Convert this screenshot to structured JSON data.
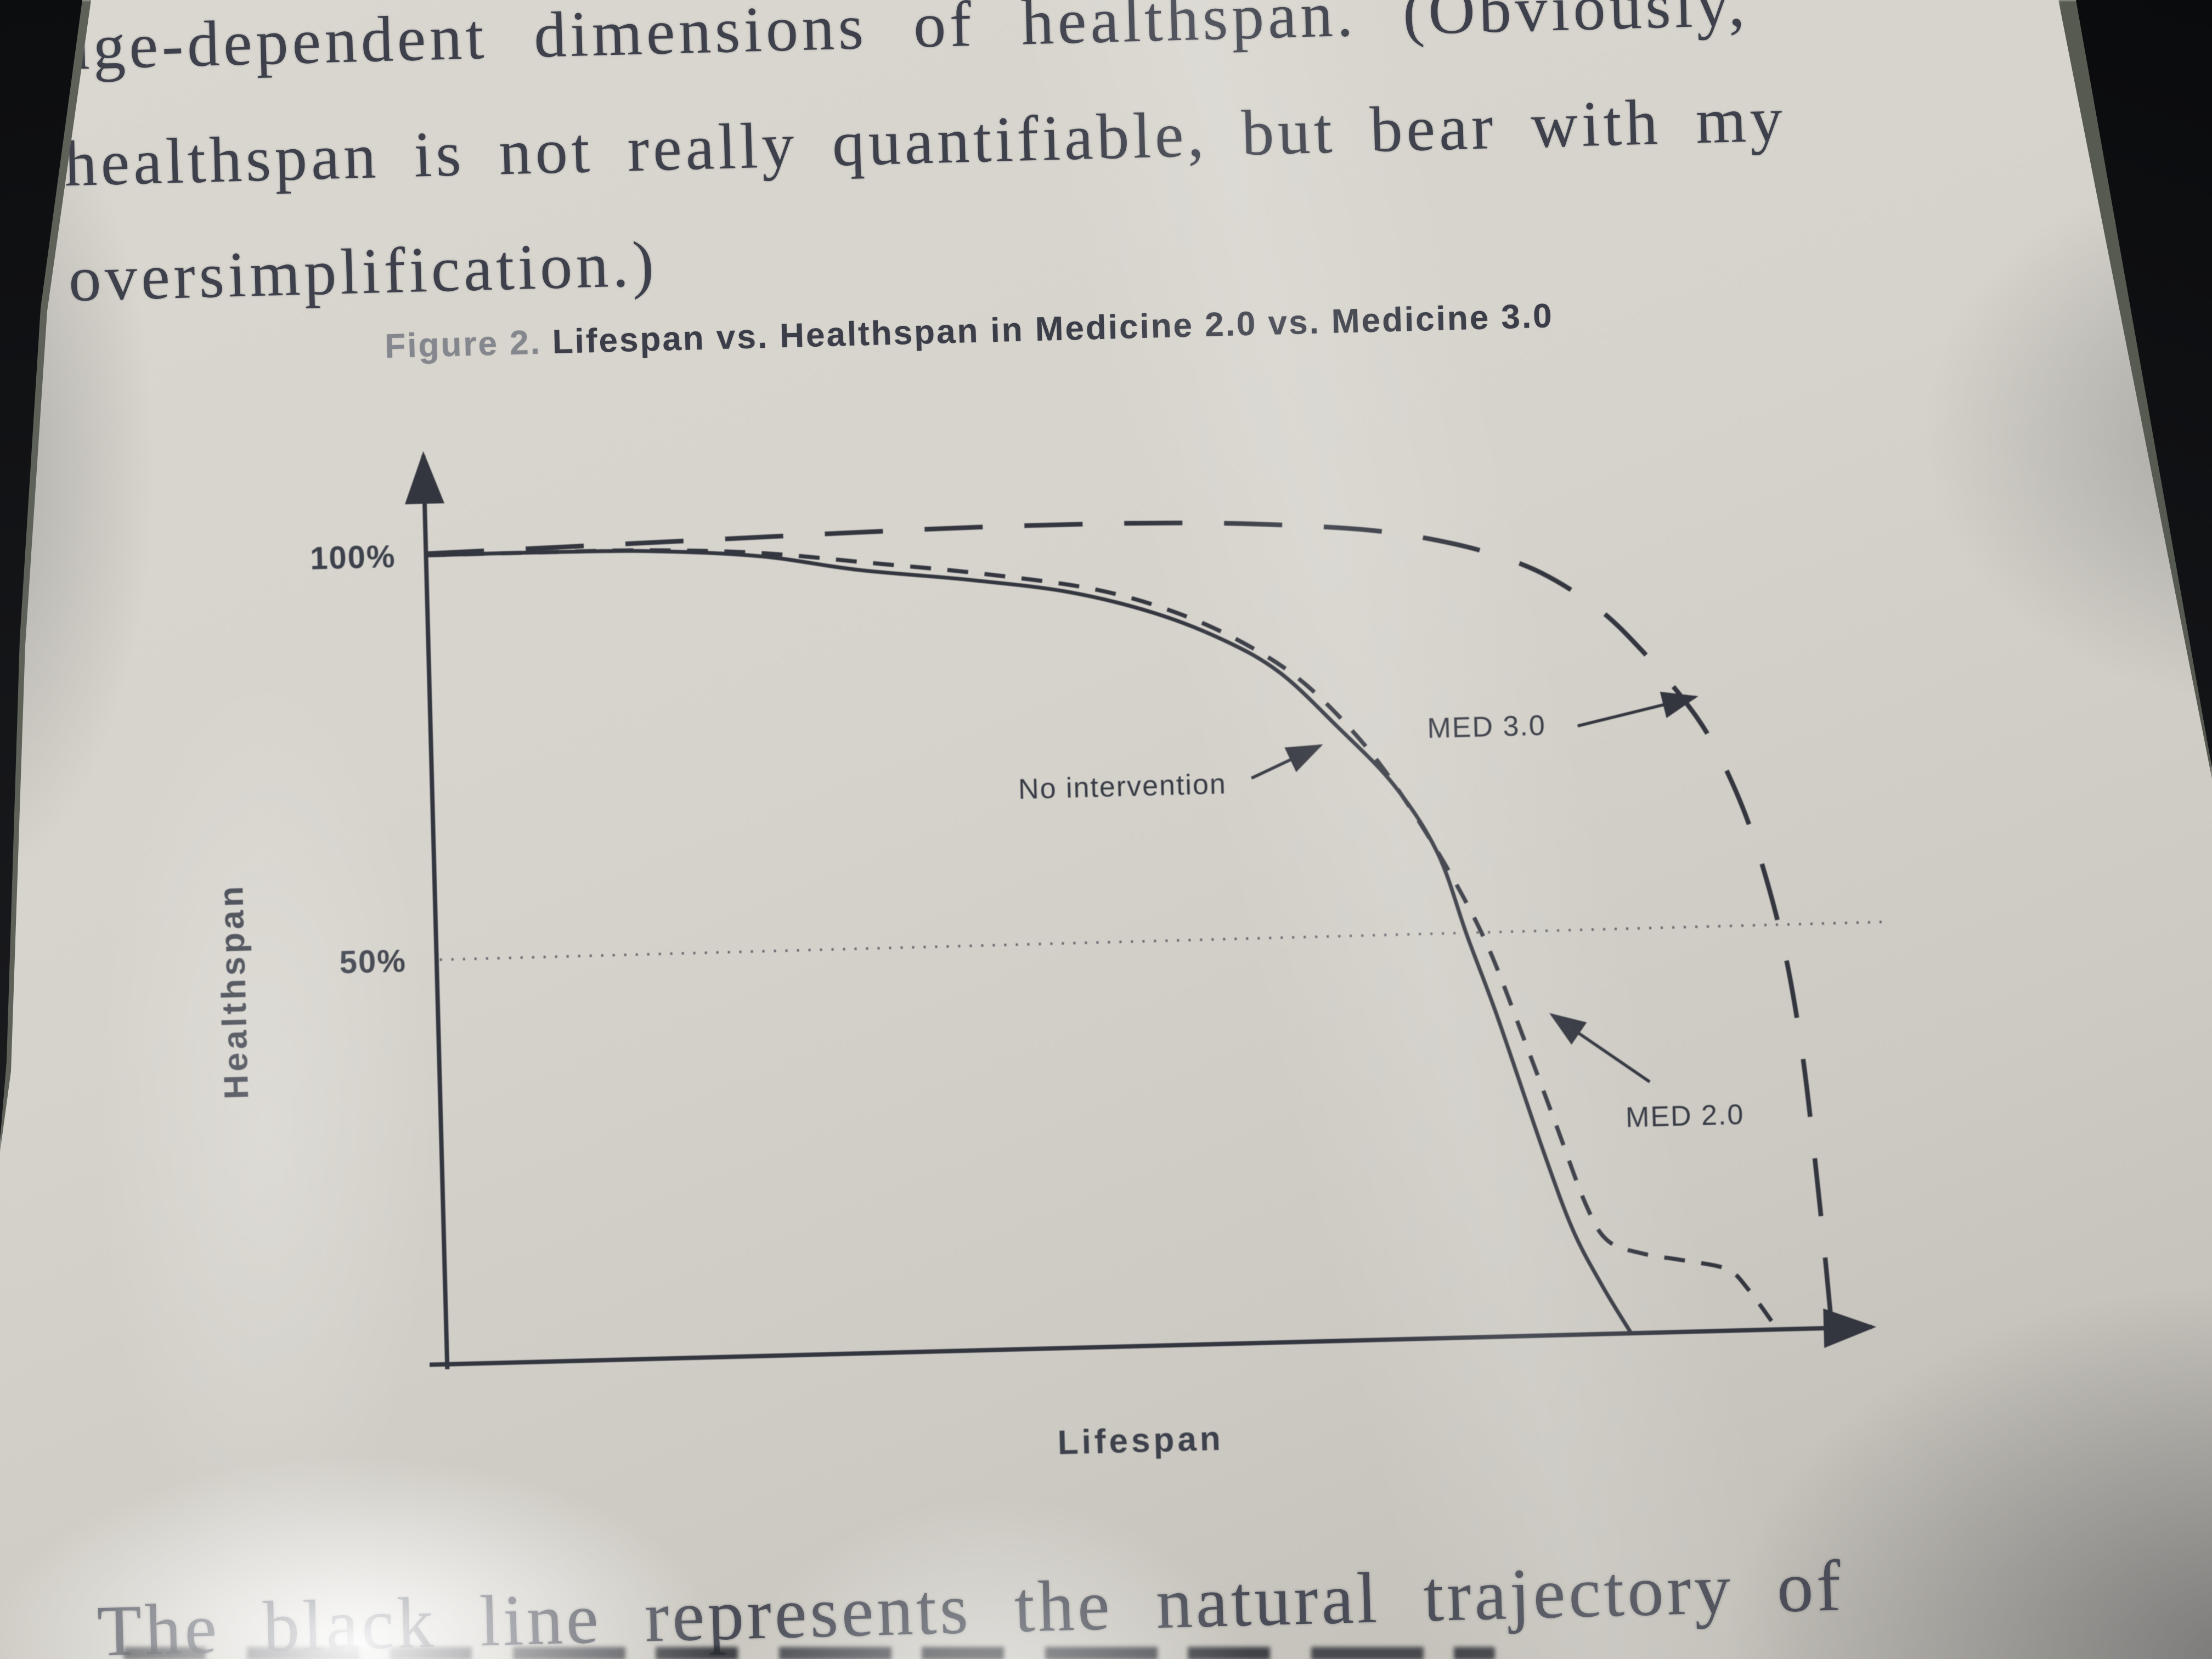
{
  "colors": {
    "paper": "#d6d3cc",
    "ink_serif": "#3e414b",
    "ink_chart": "#33363f",
    "caption_prefix_gray": "#84878d",
    "caption_title": "#3b3e48",
    "device_edge_black": "#0c0d0f"
  },
  "book_text": {
    "top_lines": [
      "age-dependent dimensions of healthspan. (Obviously,",
      "healthspan is not really quantifiable, but bear with my",
      "oversimplification.)"
    ],
    "bottom_line": "The black line represents the natural trajectory of"
  },
  "figure_caption": {
    "prefix": "Figure 2.",
    "title": "Lifespan vs. Healthspan in Medicine 2.0 vs. Medicine 3.0"
  },
  "chart_data": {
    "type": "line",
    "title": "Figure 2. Lifespan vs. Healthspan in Medicine 2.0 vs. Medicine 3.0",
    "xlabel": "Lifespan",
    "ylabel": "Healthspan",
    "xlim": [
      0,
      100
    ],
    "ylim": [
      0,
      110
    ],
    "grid": false,
    "legend_position": "inline arrow annotations",
    "yticks": [
      {
        "label": "100%",
        "value": 100,
        "style": "tick"
      },
      {
        "label": "50%",
        "value": 50,
        "style": "dotted-gridline"
      }
    ],
    "series": [
      {
        "name": "No intervention",
        "style": "solid",
        "points": [
          [
            0,
            100
          ],
          [
            8,
            100
          ],
          [
            16,
            99.8
          ],
          [
            24,
            98.8
          ],
          [
            31,
            96.8
          ],
          [
            39,
            95.2
          ],
          [
            46,
            93.4
          ],
          [
            52,
            90.6
          ],
          [
            57,
            87
          ],
          [
            61,
            82.8
          ],
          [
            65,
            76
          ],
          [
            69,
            68.5
          ],
          [
            72,
            60
          ],
          [
            74,
            49.5
          ],
          [
            76,
            39.5
          ],
          [
            79,
            23
          ],
          [
            81,
            13
          ],
          [
            83,
            6
          ],
          [
            85,
            0
          ]
        ]
      },
      {
        "name": "MED 2.0",
        "style": "short-dash",
        "points": [
          [
            0,
            100
          ],
          [
            8,
            100
          ],
          [
            16,
            99.9
          ],
          [
            24,
            99.2
          ],
          [
            32,
            97.6
          ],
          [
            40,
            95.9
          ],
          [
            48,
            93.6
          ],
          [
            54,
            90.3
          ],
          [
            59,
            86
          ],
          [
            63,
            81
          ],
          [
            67,
            73.5
          ],
          [
            70,
            66
          ],
          [
            73,
            57
          ],
          [
            75.5,
            48
          ],
          [
            78,
            36
          ],
          [
            80,
            26
          ],
          [
            82,
            16
          ],
          [
            83.5,
            11.5
          ],
          [
            86,
            9.8
          ],
          [
            89,
            8.8
          ],
          [
            92,
            7.6
          ],
          [
            93.5,
            5
          ],
          [
            95.5,
            0
          ]
        ]
      },
      {
        "name": "MED 3.0",
        "style": "long-dash",
        "points": [
          [
            0,
            100.2
          ],
          [
            10,
            100.6
          ],
          [
            20,
            101
          ],
          [
            30,
            101.4
          ],
          [
            40,
            101.7
          ],
          [
            50,
            101.7
          ],
          [
            57,
            101.4
          ],
          [
            63,
            100.8
          ],
          [
            68,
            100
          ],
          [
            72,
            98.8
          ],
          [
            76,
            97
          ],
          [
            80,
            94.2
          ],
          [
            84,
            89.6
          ],
          [
            87,
            84.4
          ],
          [
            90,
            78
          ],
          [
            92,
            72.5
          ],
          [
            94,
            64.5
          ],
          [
            95.5,
            56
          ],
          [
            96.8,
            46
          ],
          [
            97.8,
            34
          ],
          [
            98.5,
            21
          ],
          [
            99,
            10
          ],
          [
            99.4,
            0
          ]
        ]
      }
    ],
    "annotations": [
      {
        "series": 0,
        "label_at": [
          57,
          68
        ],
        "anchor": "end",
        "arrow": [
          [
            58.8,
            69.8
          ],
          [
            63.8,
            73.6
          ]
        ]
      },
      {
        "series": 2,
        "label_at": [
          71.5,
          74.2
        ],
        "anchor": "start",
        "arrow": [
          [
            82.3,
            75.2
          ],
          [
            90.8,
            78.4
          ]
        ]
      },
      {
        "series": 1,
        "label_at": [
          85,
          25.5
        ],
        "anchor": "start",
        "arrow": [
          [
            86.8,
            31
          ],
          [
            79.9,
            39.6
          ]
        ]
      }
    ]
  }
}
